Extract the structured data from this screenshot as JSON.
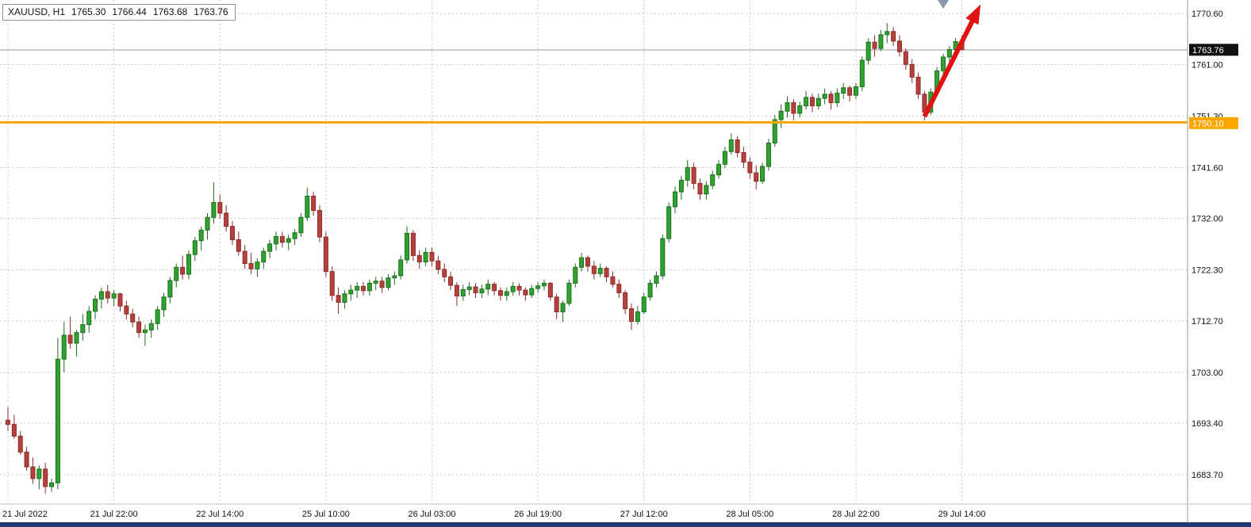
{
  "header": {
    "symbol_timeframe": "XAUUSD, H1",
    "open": "1765.30",
    "high": "1766.44",
    "low": "1763.68",
    "close": "1763.76"
  },
  "price_axis": {
    "ticks": [
      "1770.60",
      "1761.00",
      "1751.30",
      "1741.60",
      "1732.00",
      "1722.30",
      "1712.70",
      "1703.00",
      "1693.40",
      "1683.70"
    ],
    "current_price_tag": "1763.76",
    "hline_tag": "1750.10"
  },
  "time_axis": {
    "ticks": [
      {
        "label": "21 Jul 2022",
        "bar": 0
      },
      {
        "label": "21 Jul 22:00",
        "bar": 17
      },
      {
        "label": "22 Jul 14:00",
        "bar": 34
      },
      {
        "label": "25 Jul 10:00",
        "bar": 51
      },
      {
        "label": "26 Jul 03:00",
        "bar": 68
      },
      {
        "label": "26 Jul 19:00",
        "bar": 85
      },
      {
        "label": "27 Jul 12:00",
        "bar": 102
      },
      {
        "label": "28 Jul 05:00",
        "bar": 119
      },
      {
        "label": "28 Jul 22:00",
        "bar": 136
      },
      {
        "label": "29 Jul 14:00",
        "bar": 153
      }
    ]
  },
  "chart_data": {
    "type": "candlestick",
    "symbol": "XAUUSD",
    "timeframe": "H1",
    "title": "XAUUSD, H1",
    "ylim": [
      1680,
      1773
    ],
    "current_price": 1763.76,
    "horizontal_line": {
      "price": 1750.1,
      "color": "#FFA500",
      "label": "1750.10"
    },
    "annotation_arrow": {
      "start_bar": 147,
      "start_price": 1751.2,
      "end_bar": 156,
      "end_price": 1772.3,
      "color": "#E01212"
    },
    "gray_marker_bar": 150,
    "colors": {
      "up": "#2FA32F",
      "up_border": "#1C6E1C",
      "down": "#B6403C",
      "down_border": "#8C2B28",
      "grid": "#c9c9c9",
      "bid_line": "#9a9a9a",
      "arrow": "#E01212",
      "tag_bg": "#111111"
    },
    "candles": [
      [
        1694.0,
        1696.5,
        1692.0,
        1693.2
      ],
      [
        1693.2,
        1695.0,
        1690.5,
        1691.0
      ],
      [
        1691.0,
        1692.0,
        1687.5,
        1688.0
      ],
      [
        1688.0,
        1689.0,
        1684.5,
        1685.2
      ],
      [
        1685.2,
        1687.0,
        1682.0,
        1683.0
      ],
      [
        1683.0,
        1685.5,
        1681.0,
        1684.8
      ],
      [
        1684.8,
        1686.0,
        1680.2,
        1681.5
      ],
      [
        1681.5,
        1683.0,
        1680.5,
        1682.2
      ],
      [
        1682.2,
        1709.5,
        1681.0,
        1705.5
      ],
      [
        1705.5,
        1712.5,
        1703.0,
        1710.0
      ],
      [
        1710.0,
        1713.5,
        1707.5,
        1708.5
      ],
      [
        1708.5,
        1711.0,
        1706.0,
        1710.5
      ],
      [
        1710.5,
        1714.0,
        1709.0,
        1712.0
      ],
      [
        1712.0,
        1715.5,
        1710.5,
        1714.5
      ],
      [
        1714.5,
        1717.5,
        1713.0,
        1716.8
      ],
      [
        1716.8,
        1719.0,
        1715.0,
        1718.2
      ],
      [
        1718.2,
        1719.5,
        1716.0,
        1717.0
      ],
      [
        1717.0,
        1718.5,
        1715.5,
        1717.8
      ],
      [
        1717.8,
        1718.0,
        1714.5,
        1715.5
      ],
      [
        1715.5,
        1716.5,
        1713.0,
        1714.0
      ],
      [
        1714.0,
        1715.0,
        1711.5,
        1712.5
      ],
      [
        1712.5,
        1713.5,
        1709.5,
        1710.5
      ],
      [
        1710.5,
        1712.0,
        1708.0,
        1711.0
      ],
      [
        1711.0,
        1713.0,
        1709.5,
        1712.2
      ],
      [
        1712.2,
        1715.5,
        1711.0,
        1714.8
      ],
      [
        1714.8,
        1718.0,
        1713.5,
        1717.2
      ],
      [
        1717.2,
        1721.0,
        1716.0,
        1720.3
      ],
      [
        1720.3,
        1723.5,
        1719.0,
        1722.8
      ],
      [
        1722.8,
        1725.0,
        1720.5,
        1721.5
      ],
      [
        1721.5,
        1726.0,
        1720.5,
        1725.2
      ],
      [
        1725.2,
        1728.5,
        1724.0,
        1727.8
      ],
      [
        1727.8,
        1730.5,
        1726.0,
        1729.8
      ],
      [
        1729.8,
        1733.0,
        1728.0,
        1732.2
      ],
      [
        1732.2,
        1738.8,
        1731.0,
        1735.0
      ],
      [
        1735.0,
        1736.5,
        1732.0,
        1733.0
      ],
      [
        1733.0,
        1734.5,
        1729.5,
        1730.5
      ],
      [
        1730.5,
        1731.5,
        1727.0,
        1728.0
      ],
      [
        1728.0,
        1729.5,
        1725.0,
        1725.8
      ],
      [
        1725.8,
        1727.0,
        1722.5,
        1723.5
      ],
      [
        1723.5,
        1725.5,
        1721.5,
        1722.5
      ],
      [
        1722.5,
        1724.5,
        1721.0,
        1723.8
      ],
      [
        1723.8,
        1726.5,
        1722.5,
        1725.8
      ],
      [
        1725.8,
        1728.0,
        1724.5,
        1727.2
      ],
      [
        1727.2,
        1729.5,
        1726.0,
        1728.6
      ],
      [
        1728.6,
        1729.5,
        1726.5,
        1727.5
      ],
      [
        1727.5,
        1729.0,
        1726.0,
        1728.2
      ],
      [
        1728.2,
        1730.0,
        1727.0,
        1729.3
      ],
      [
        1729.3,
        1733.0,
        1728.5,
        1732.2
      ],
      [
        1732.2,
        1737.8,
        1731.5,
        1736.2
      ],
      [
        1736.2,
        1737.0,
        1732.5,
        1733.5
      ],
      [
        1733.5,
        1734.5,
        1727.5,
        1728.5
      ],
      [
        1728.5,
        1729.5,
        1721.0,
        1722.0
      ],
      [
        1722.0,
        1723.0,
        1716.5,
        1717.5
      ],
      [
        1717.5,
        1719.0,
        1714.0,
        1716.2
      ],
      [
        1716.2,
        1718.5,
        1715.0,
        1717.8
      ],
      [
        1717.8,
        1719.5,
        1716.5,
        1718.5
      ],
      [
        1718.5,
        1720.0,
        1717.0,
        1719.2
      ],
      [
        1719.2,
        1720.0,
        1717.5,
        1718.4
      ],
      [
        1718.4,
        1720.5,
        1717.5,
        1719.8
      ],
      [
        1719.8,
        1721.0,
        1718.5,
        1720.2
      ],
      [
        1720.2,
        1721.0,
        1718.0,
        1719.0
      ],
      [
        1719.0,
        1721.5,
        1718.5,
        1720.8
      ],
      [
        1720.8,
        1722.0,
        1719.5,
        1721.2
      ],
      [
        1721.2,
        1725.0,
        1720.5,
        1724.2
      ],
      [
        1724.2,
        1730.5,
        1723.5,
        1729.2
      ],
      [
        1729.2,
        1729.8,
        1724.0,
        1725.0
      ],
      [
        1725.0,
        1726.0,
        1722.5,
        1723.8
      ],
      [
        1723.8,
        1726.5,
        1723.0,
        1725.6
      ],
      [
        1725.6,
        1726.5,
        1723.0,
        1724.0
      ],
      [
        1724.0,
        1725.0,
        1721.5,
        1722.4
      ],
      [
        1722.4,
        1723.5,
        1720.0,
        1721.0
      ],
      [
        1721.0,
        1722.0,
        1718.5,
        1719.4
      ],
      [
        1719.4,
        1720.0,
        1715.5,
        1717.4
      ],
      [
        1717.4,
        1719.5,
        1716.5,
        1718.6
      ],
      [
        1718.6,
        1720.0,
        1717.5,
        1719.1
      ],
      [
        1719.1,
        1719.8,
        1717.0,
        1718.0
      ],
      [
        1718.0,
        1719.5,
        1717.0,
        1718.7
      ],
      [
        1718.7,
        1720.5,
        1717.5,
        1719.6
      ],
      [
        1719.6,
        1720.0,
        1717.5,
        1718.4
      ],
      [
        1718.4,
        1719.0,
        1716.5,
        1717.5
      ],
      [
        1717.5,
        1719.0,
        1716.5,
        1718.2
      ],
      [
        1718.2,
        1720.0,
        1717.5,
        1719.2
      ],
      [
        1719.2,
        1719.8,
        1717.5,
        1718.5
      ],
      [
        1718.5,
        1719.0,
        1716.5,
        1717.6
      ],
      [
        1717.6,
        1719.5,
        1717.0,
        1718.8
      ],
      [
        1718.8,
        1720.0,
        1718.0,
        1719.3
      ],
      [
        1719.3,
        1720.5,
        1718.5,
        1719.8
      ],
      [
        1719.8,
        1720.0,
        1716.5,
        1717.2
      ],
      [
        1717.2,
        1717.8,
        1713.0,
        1714.4
      ],
      [
        1714.4,
        1716.5,
        1712.5,
        1716.0
      ],
      [
        1716.0,
        1720.5,
        1715.5,
        1719.8
      ],
      [
        1719.8,
        1723.5,
        1719.0,
        1722.8
      ],
      [
        1722.8,
        1725.5,
        1722.0,
        1724.6
      ],
      [
        1724.6,
        1725.0,
        1722.0,
        1723.0
      ],
      [
        1723.0,
        1724.0,
        1720.5,
        1721.6
      ],
      [
        1721.6,
        1723.5,
        1721.0,
        1722.6
      ],
      [
        1722.6,
        1723.0,
        1720.0,
        1721.0
      ],
      [
        1721.0,
        1722.0,
        1719.0,
        1719.6
      ],
      [
        1719.6,
        1720.5,
        1717.0,
        1718.0
      ],
      [
        1718.0,
        1718.5,
        1714.0,
        1715.0
      ],
      [
        1715.0,
        1716.0,
        1711.0,
        1712.6
      ],
      [
        1712.6,
        1715.5,
        1712.0,
        1714.4
      ],
      [
        1714.4,
        1718.0,
        1714.0,
        1717.2
      ],
      [
        1717.2,
        1720.5,
        1716.5,
        1719.8
      ],
      [
        1719.8,
        1722.0,
        1719.0,
        1721.2
      ],
      [
        1721.2,
        1729.0,
        1720.5,
        1728.2
      ],
      [
        1728.2,
        1735.0,
        1727.5,
        1734.2
      ],
      [
        1734.2,
        1738.0,
        1733.0,
        1737.0
      ],
      [
        1737.0,
        1740.0,
        1735.5,
        1739.2
      ],
      [
        1739.2,
        1743.0,
        1738.0,
        1741.6
      ],
      [
        1741.6,
        1742.5,
        1737.5,
        1738.6
      ],
      [
        1738.6,
        1739.5,
        1735.5,
        1736.6
      ],
      [
        1736.6,
        1739.0,
        1735.5,
        1738.2
      ],
      [
        1738.2,
        1741.0,
        1737.5,
        1740.2
      ],
      [
        1740.2,
        1743.0,
        1739.5,
        1742.2
      ],
      [
        1742.2,
        1745.5,
        1741.5,
        1744.6
      ],
      [
        1744.6,
        1748.0,
        1744.0,
        1746.8
      ],
      [
        1746.8,
        1747.5,
        1743.5,
        1744.4
      ],
      [
        1744.4,
        1745.5,
        1741.5,
        1742.6
      ],
      [
        1742.6,
        1743.5,
        1739.5,
        1740.6
      ],
      [
        1740.6,
        1742.0,
        1737.5,
        1739.0
      ],
      [
        1739.0,
        1742.5,
        1738.5,
        1741.8
      ],
      [
        1741.8,
        1747.0,
        1741.0,
        1746.2
      ],
      [
        1746.2,
        1751.5,
        1745.5,
        1750.6
      ],
      [
        1750.6,
        1753.5,
        1749.0,
        1752.2
      ],
      [
        1752.2,
        1755.0,
        1751.0,
        1753.8
      ],
      [
        1753.8,
        1754.5,
        1750.5,
        1751.8
      ],
      [
        1751.8,
        1754.0,
        1751.0,
        1753.2
      ],
      [
        1753.2,
        1756.0,
        1752.5,
        1754.8
      ],
      [
        1754.8,
        1755.5,
        1752.0,
        1753.2
      ],
      [
        1753.2,
        1755.5,
        1752.5,
        1754.6
      ],
      [
        1754.6,
        1756.5,
        1753.5,
        1755.4
      ],
      [
        1755.4,
        1756.0,
        1752.5,
        1753.8
      ],
      [
        1753.8,
        1756.5,
        1753.0,
        1755.6
      ],
      [
        1755.6,
        1757.5,
        1754.5,
        1756.6
      ],
      [
        1756.6,
        1757.0,
        1754.0,
        1755.2
      ],
      [
        1755.2,
        1757.5,
        1754.5,
        1756.8
      ],
      [
        1756.8,
        1762.5,
        1756.0,
        1761.8
      ],
      [
        1761.8,
        1766.0,
        1761.0,
        1765.2
      ],
      [
        1765.2,
        1766.5,
        1762.5,
        1764.0
      ],
      [
        1764.0,
        1767.5,
        1763.5,
        1766.6
      ],
      [
        1766.6,
        1768.8,
        1765.0,
        1767.2
      ],
      [
        1767.2,
        1768.0,
        1764.5,
        1765.4
      ],
      [
        1765.4,
        1766.5,
        1762.5,
        1763.4
      ],
      [
        1763.4,
        1764.0,
        1760.0,
        1761.0
      ],
      [
        1761.0,
        1762.0,
        1757.5,
        1758.6
      ],
      [
        1758.6,
        1759.5,
        1754.5,
        1755.4
      ],
      [
        1755.4,
        1756.0,
        1750.5,
        1752.0
      ],
      [
        1752.0,
        1756.5,
        1751.5,
        1755.8
      ],
      [
        1755.8,
        1760.5,
        1755.0,
        1759.8
      ],
      [
        1759.8,
        1763.0,
        1759.0,
        1762.4
      ],
      [
        1762.4,
        1764.5,
        1761.0,
        1763.8
      ],
      [
        1763.8,
        1766.0,
        1762.5,
        1765.3
      ],
      [
        1765.3,
        1766.44,
        1763.68,
        1763.76
      ]
    ]
  }
}
